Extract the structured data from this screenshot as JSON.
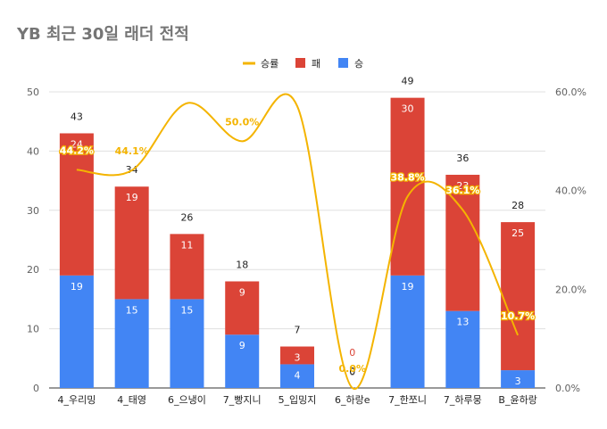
{
  "chart_data": {
    "type": "bar",
    "stacked": true,
    "title": "YB 최근 30일 래더 전적",
    "categories": [
      "4_우리밍",
      "4_태영",
      "6_으냉이",
      "7_빵지니",
      "5_입밍지",
      "6_하랑e",
      "7_한쪼니",
      "7_하루뭉",
      "B_윤하랑"
    ],
    "series": [
      {
        "name": "승",
        "type": "bar",
        "color": "#4285f4",
        "values": [
          19,
          15,
          15,
          9,
          4,
          0,
          19,
          13,
          3
        ]
      },
      {
        "name": "패",
        "type": "bar",
        "color": "#db4437",
        "values": [
          24,
          19,
          11,
          9,
          3,
          0,
          30,
          23,
          25
        ]
      },
      {
        "name": "승률",
        "type": "line",
        "axis": "right",
        "smooth": true,
        "color": "#f4b400",
        "values": [
          0.442,
          0.441,
          0.577,
          0.5,
          0.571,
          0.0,
          0.388,
          0.361,
          0.107
        ]
      }
    ],
    "totals": [
      43,
      34,
      26,
      18,
      7,
      0,
      49,
      36,
      28
    ],
    "rate_labels": [
      "44.2%",
      "44.1%",
      "",
      "50.0%",
      "",
      "0.0%",
      "38.8%",
      "36.1%",
      "10.7%"
    ],
    "y_left": {
      "min": 0,
      "max": 50,
      "ticks": [
        "0",
        "10",
        "20",
        "30",
        "40",
        "50"
      ]
    },
    "y_right": {
      "min": 0,
      "max": 0.6,
      "ticks": [
        "0.0%",
        "20.0%",
        "40.0%",
        "60.0%"
      ]
    },
    "legend": {
      "position": "top",
      "items": [
        "승률",
        "패",
        "승"
      ]
    },
    "grid": true
  }
}
